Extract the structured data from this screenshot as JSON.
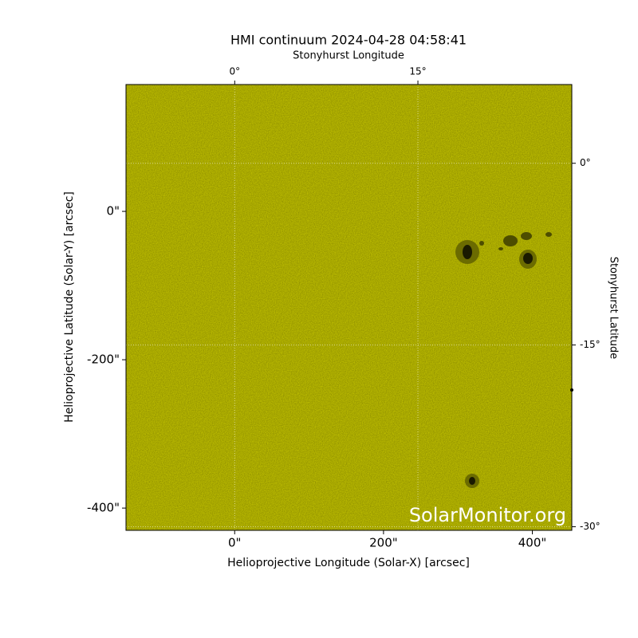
{
  "chart_data": {
    "type": "image",
    "title": "HMI continuum 2024-04-28 04:58:41",
    "xlabel": "Helioprojective Longitude (Solar-X) [arcsec]",
    "ylabel": "Helioprojective Latitude (Solar-Y) [arcsec]",
    "x2label": "Stonyhurst Longitude",
    "y2label": "Stonyhurst Latitude",
    "watermark": "SolarMonitor.org",
    "xlim": [
      -146,
      453
    ],
    "ylim": [
      -430,
      171
    ],
    "xticks": [
      {
        "value": 0,
        "label": "0\""
      },
      {
        "value": 200,
        "label": "200\""
      },
      {
        "value": 400,
        "label": "400\""
      }
    ],
    "yticks": [
      {
        "value": 0,
        "label": "0\""
      },
      {
        "value": -200,
        "label": "-200\""
      },
      {
        "value": -400,
        "label": "-400\""
      }
    ],
    "x2lim": [
      -8.9,
      27.6
    ],
    "x2ticks": [
      {
        "value": 0,
        "label": "0°"
      },
      {
        "value": 15,
        "label": "15°"
      }
    ],
    "y2lim": [
      6.5,
      -30.3
    ],
    "y2ticks": [
      {
        "value": 0,
        "label": "0°"
      },
      {
        "value": -15,
        "label": "-15°"
      },
      {
        "value": -30,
        "label": "-30°"
      }
    ],
    "color": "#cccc00",
    "grid": true
  }
}
